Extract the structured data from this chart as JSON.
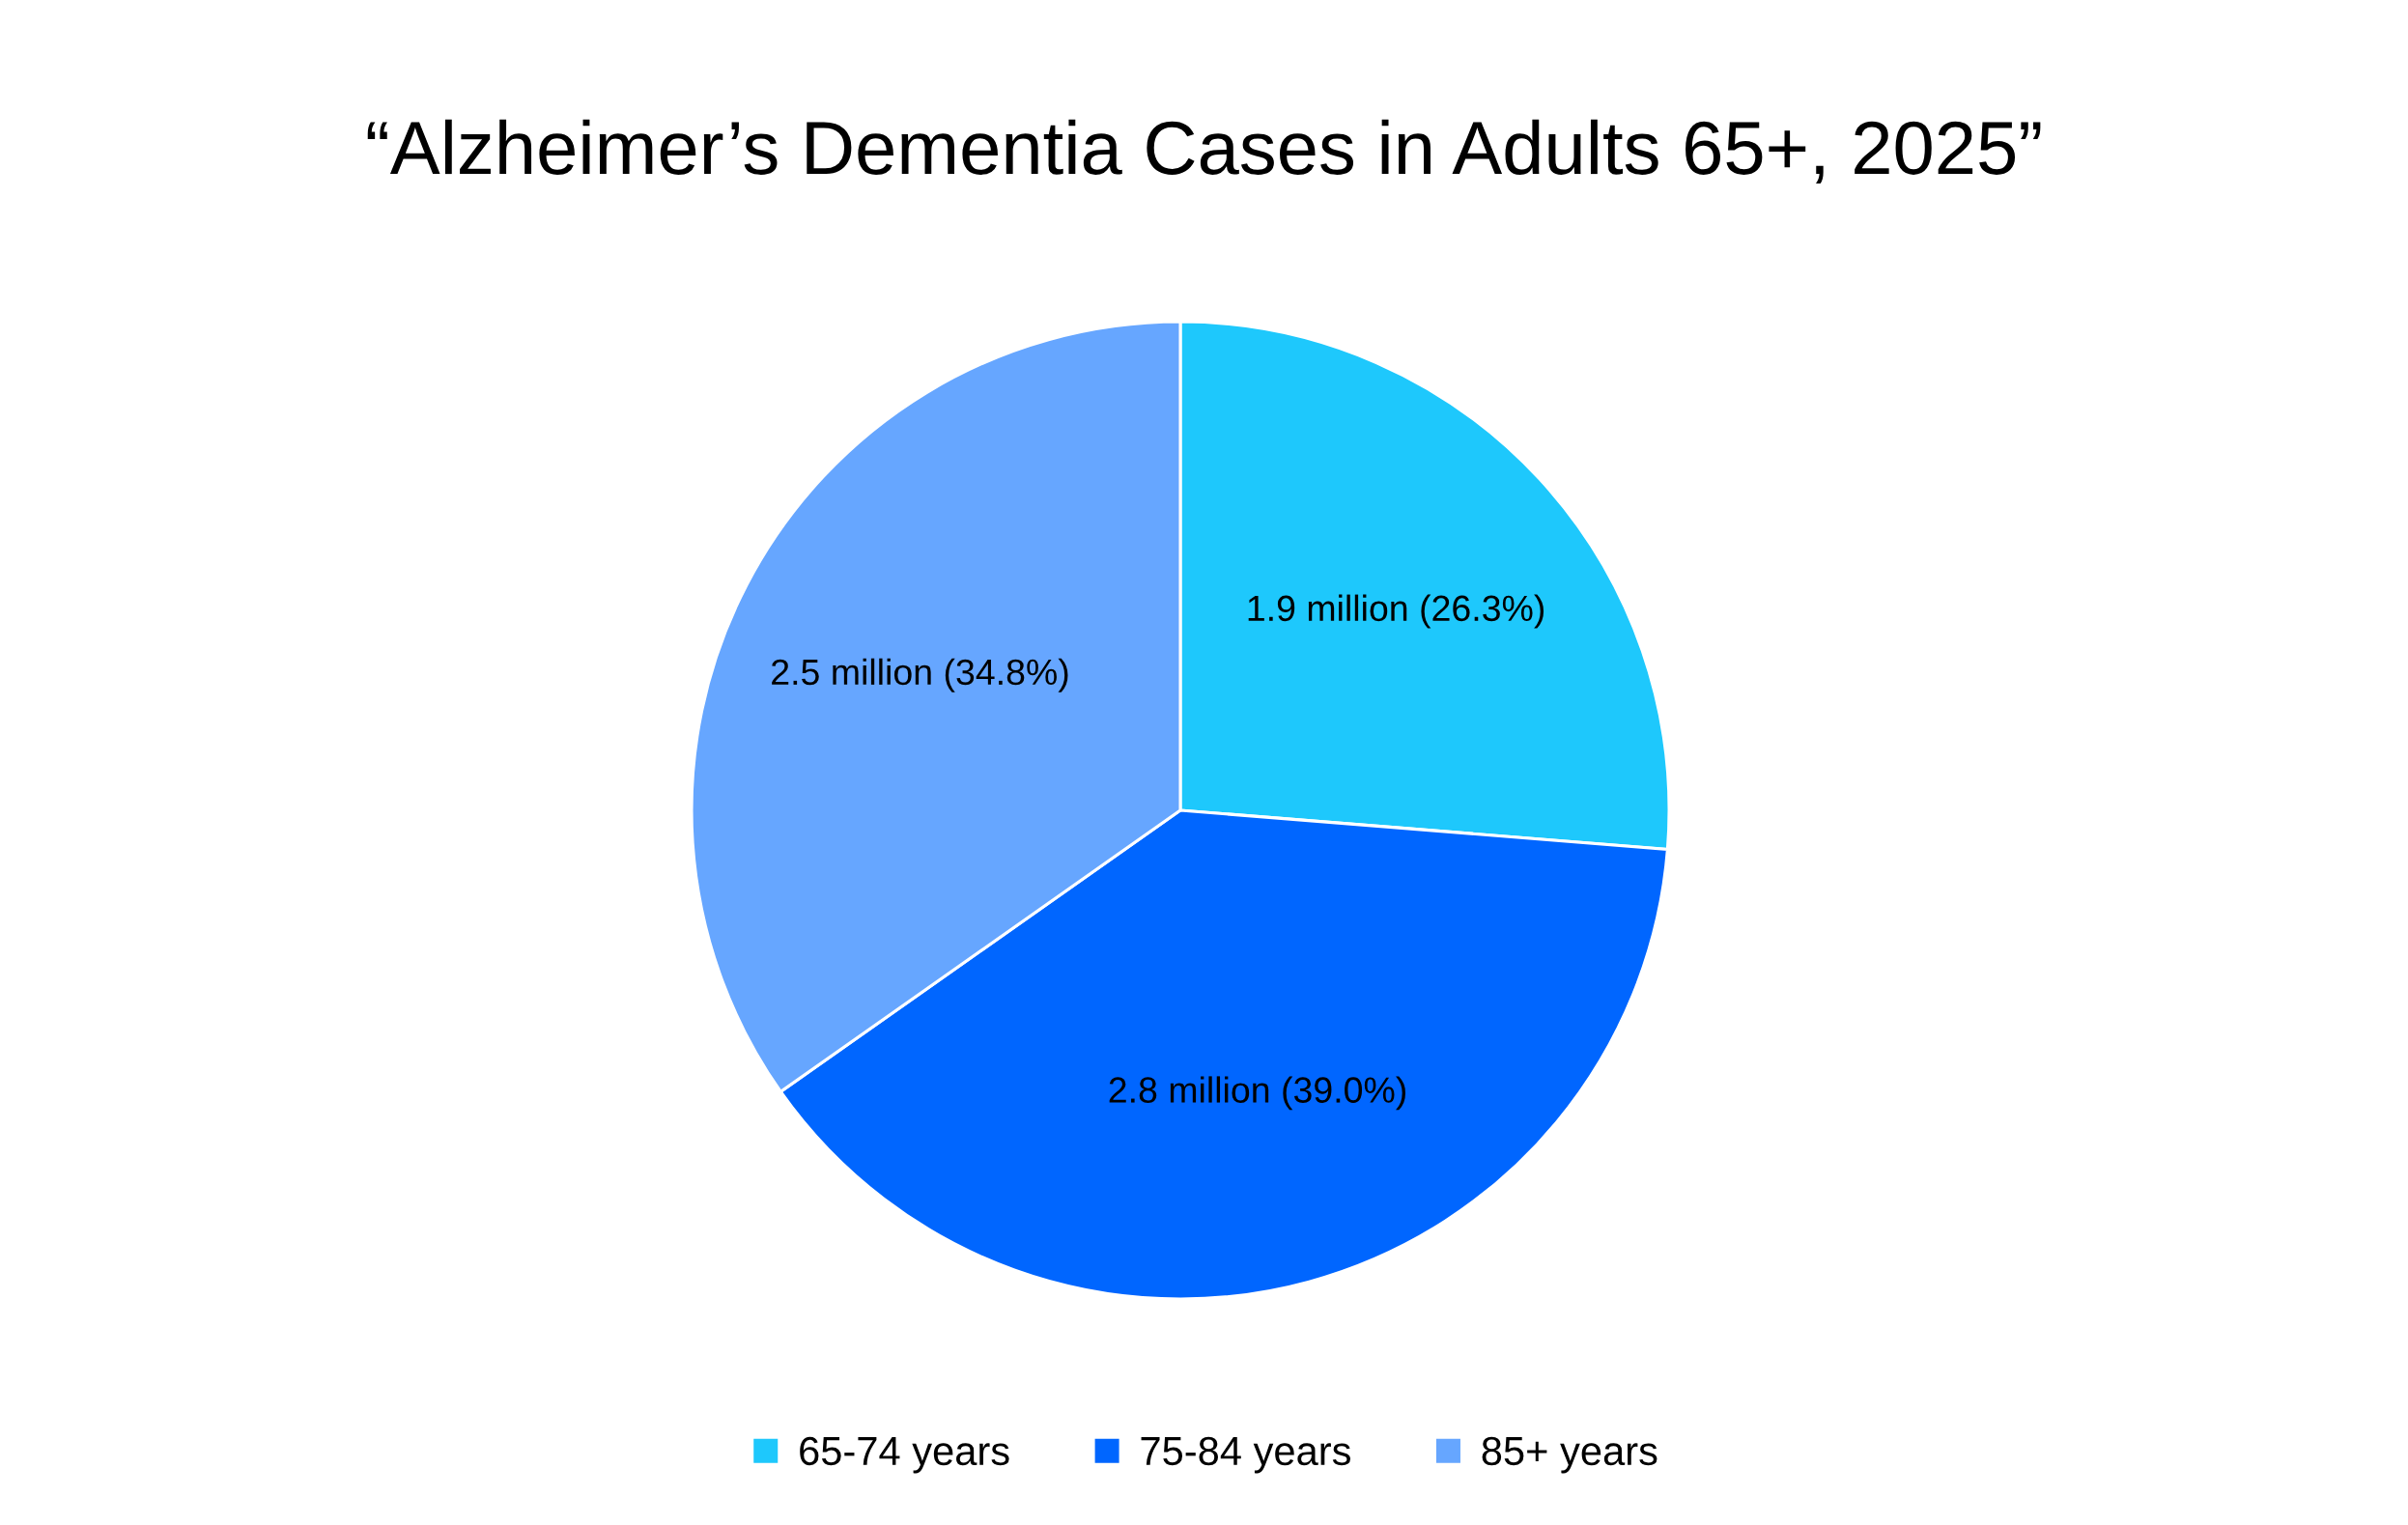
{
  "chart_data": {
    "type": "pie",
    "title": "“Alzheimer’s Dementia Cases in Adults 65+, 2025”",
    "categories": [
      "65-74 years",
      "75-84 years",
      "85+ years"
    ],
    "values": [
      26.3,
      39.0,
      34.8
    ],
    "colors": [
      "#1ec8fc",
      "#0066ff",
      "#66a6ff"
    ],
    "value_labels": [
      "1.9 million (26.3%)",
      "2.8 million (39.0%)",
      "2.5 million (34.8%)"
    ],
    "legend": "bottom"
  }
}
